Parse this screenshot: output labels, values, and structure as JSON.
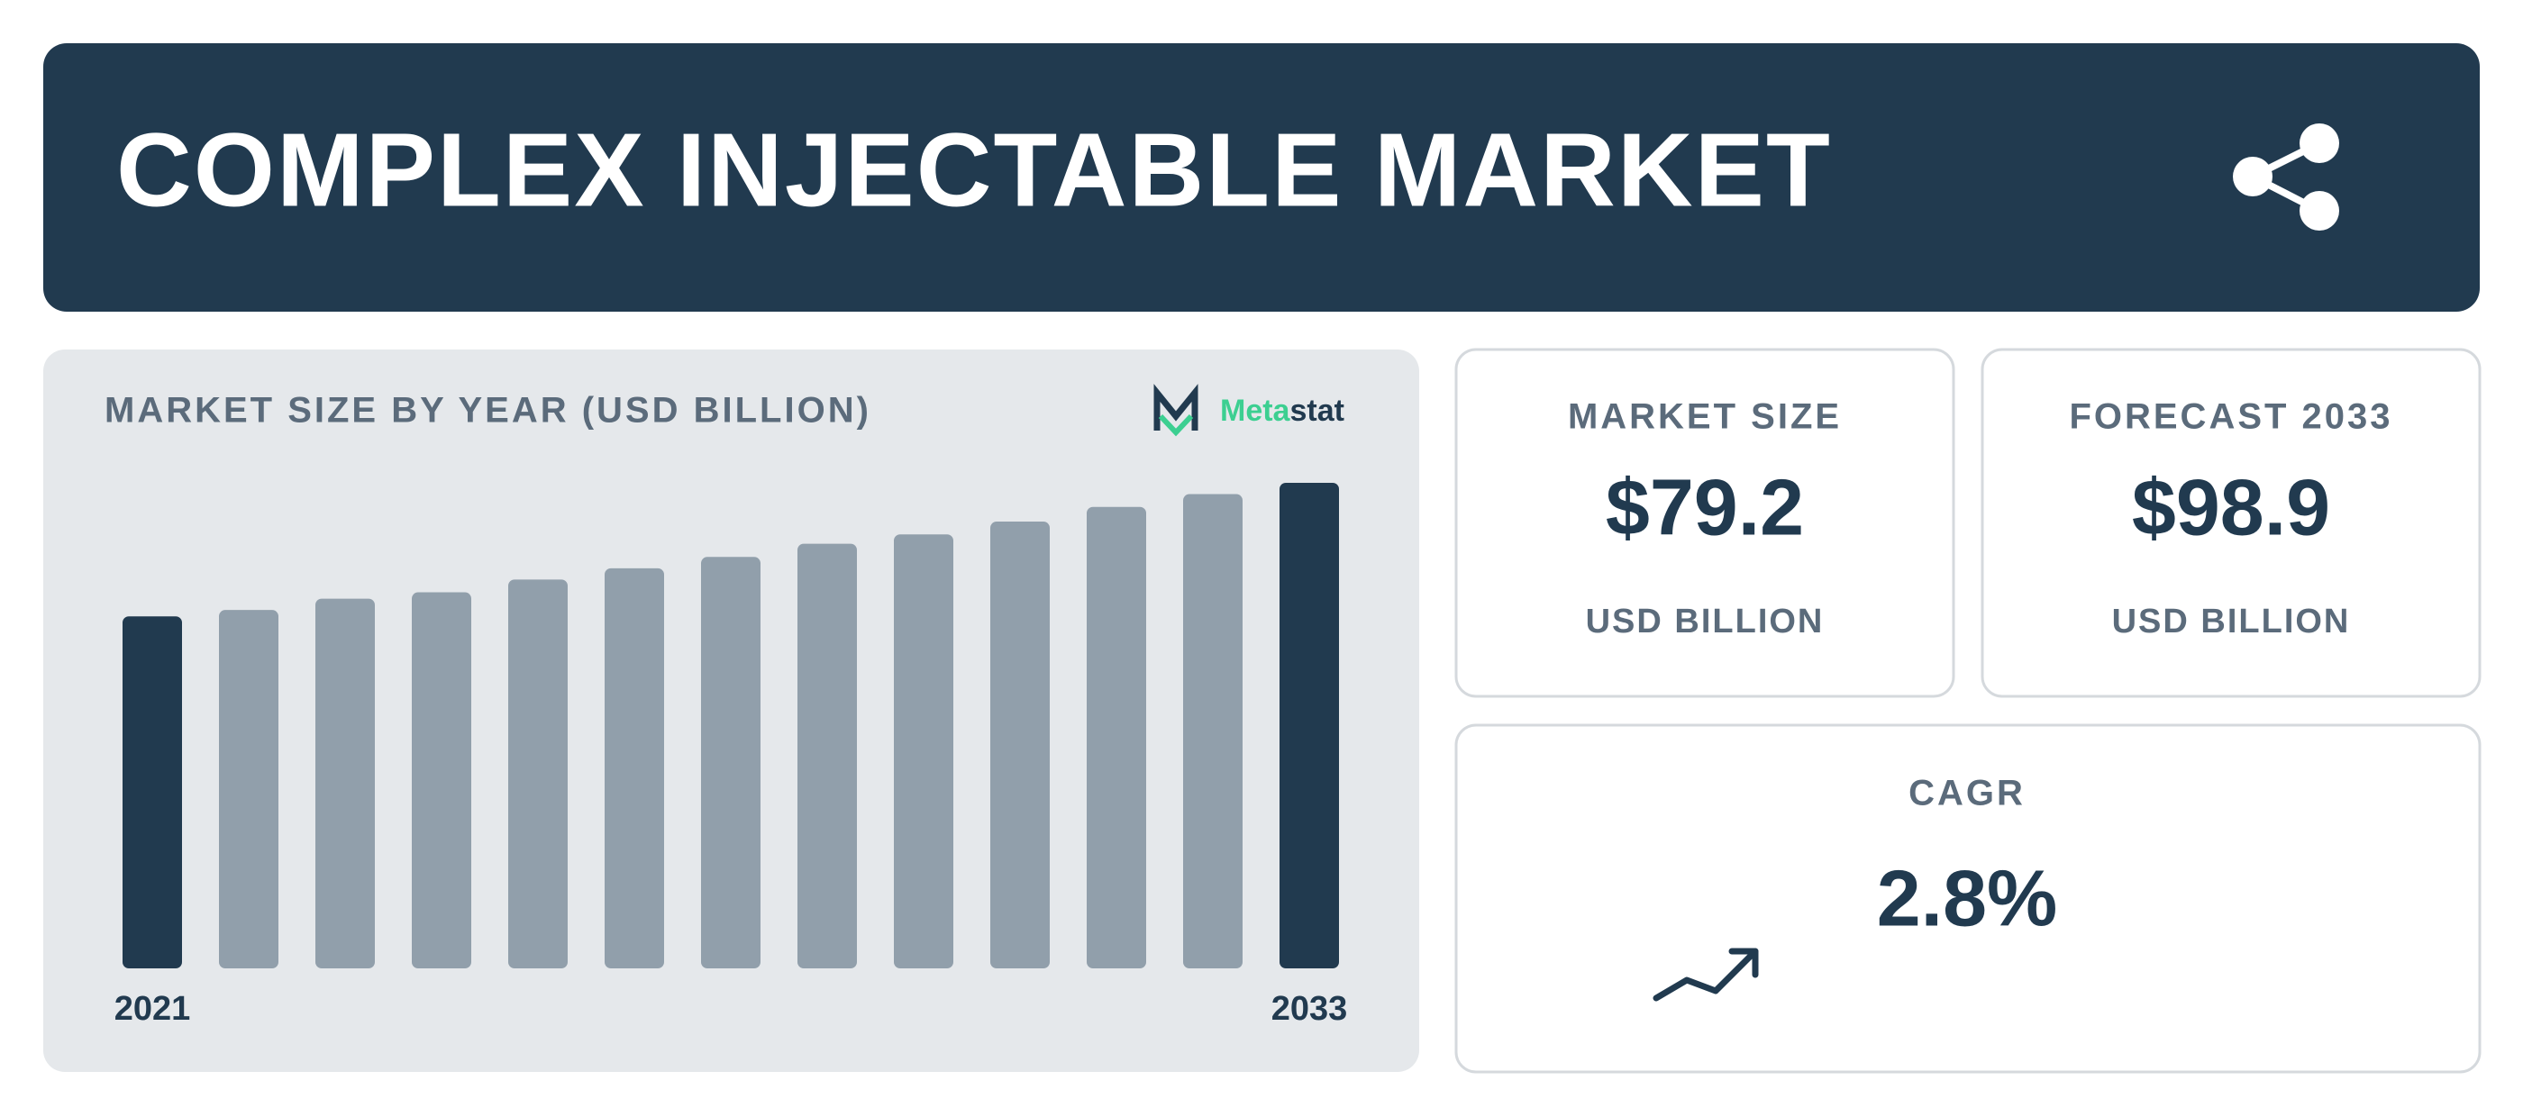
{
  "header": {
    "title": "COMPLEX INJECTABLE MARKET"
  },
  "chart_data": {
    "type": "bar",
    "title": "MARKET SIZE BY YEAR (USD BILLION)",
    "categories": [
      "2021",
      null,
      null,
      null,
      null,
      null,
      null,
      null,
      null,
      null,
      null,
      null,
      "2033"
    ],
    "values": [
      71.7,
      73.0,
      75.3,
      76.6,
      79.2,
      81.5,
      83.8,
      86.5,
      88.4,
      91.0,
      94.0,
      96.6,
      98.9
    ],
    "colors": [
      "#213a4f",
      "#919fab",
      "#919fab",
      "#919fab",
      "#919fab",
      "#919fab",
      "#919fab",
      "#919fab",
      "#919fab",
      "#919fab",
      "#919fab",
      "#919fab",
      "#213a4f"
    ]
  },
  "logo": {
    "parts": [
      "Meta",
      "stat"
    ]
  },
  "cards": [
    {
      "label": "MARKET SIZE",
      "value": "$79.2",
      "unit": "USD BILLION"
    },
    {
      "label": "FORECAST 2033",
      "value": "$98.9",
      "unit": "USD BILLION"
    },
    {
      "label": "CAGR",
      "value": "2.8%"
    }
  ]
}
